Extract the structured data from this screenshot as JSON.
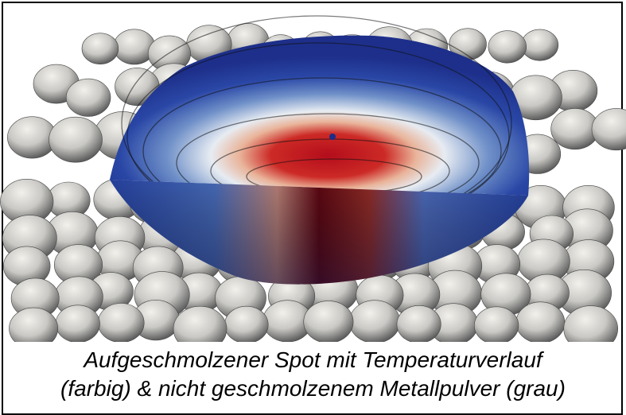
{
  "caption": {
    "lines": [
      "Aufgeschmolzener Spot mit Temperaturverlauf",
      "(farbig) & nicht geschmolzenem Metallpulver (grau)"
    ]
  }
}
